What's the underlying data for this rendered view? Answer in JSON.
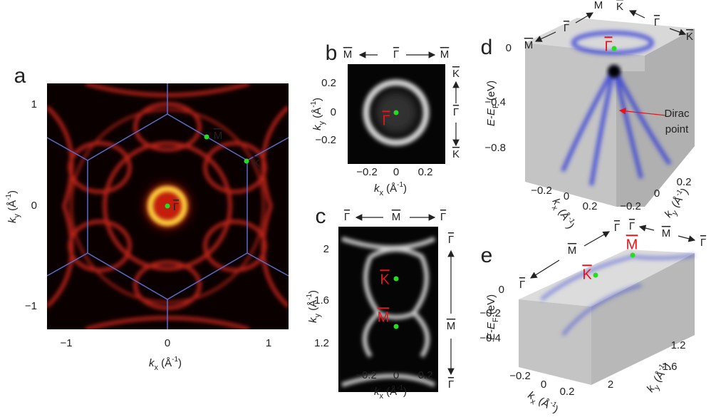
{
  "panels": [
    {
      "label": "a",
      "xlabel": [
        "k",
        "x",
        " (Å",
        "-1",
        ")"
      ],
      "ylabel": [
        "k",
        "y",
        " (Å",
        "-1",
        ")"
      ],
      "xticks": [
        "−1",
        "0",
        "1"
      ],
      "yticks": [
        "1",
        "0",
        "−1"
      ],
      "points": [
        "Γ",
        "M",
        "K"
      ]
    },
    {
      "label": "b",
      "xlabel": [
        "k",
        "x",
        " (Å",
        "-1",
        ")"
      ],
      "ylabel": [
        "k",
        "y",
        " (Å",
        "-1",
        ")"
      ],
      "xticks": [
        "−0.2",
        "0",
        "0.2"
      ],
      "yticks": [
        "0.2",
        "0",
        "−0.2"
      ],
      "points": [
        "Γ"
      ],
      "top": [
        "M",
        "Γ",
        "M"
      ],
      "side": [
        "K",
        "Γ",
        "K"
      ]
    },
    {
      "label": "c",
      "xlabel": [
        "k",
        "x",
        " (Å",
        "-1",
        ")"
      ],
      "ylabel": [
        "k",
        "y",
        " (Å",
        "-1",
        ")"
      ],
      "xticks": [
        "−0.2",
        "0",
        "0.2"
      ],
      "yticks": [
        "2",
        "1.6",
        "1.2"
      ],
      "points": [
        "K",
        "M"
      ],
      "top": [
        "Γ",
        "M",
        "Γ"
      ],
      "side": [
        "Γ",
        "M",
        "Γ"
      ]
    },
    {
      "label": "d",
      "xlabel": [
        "k",
        "x",
        " (Å",
        "-1",
        ")"
      ],
      "ylabel": [
        "k",
        "y",
        " (Å",
        "-1",
        ")"
      ],
      "zlabel": [
        "E-E",
        "F",
        " (eV)"
      ],
      "xticks": [
        "−0.2",
        "0",
        "0.2"
      ],
      "yticks": [
        "−0.2",
        "0",
        "0.2"
      ],
      "zticks": [
        "0",
        "−0.4",
        "−0.8"
      ],
      "points": [
        "Γ"
      ],
      "top": [
        "M",
        "Γ",
        "M",
        "K",
        "Γ",
        "K"
      ],
      "annotation": [
        "Dirac",
        "point"
      ]
    },
    {
      "label": "e",
      "xlabel": [
        "k",
        "x",
        " (Å",
        "-1",
        ")"
      ],
      "ylabel": [
        "k",
        "y",
        " (Å",
        "-1",
        ")"
      ],
      "zlabel": [
        "E-E",
        "F",
        " (eV)"
      ],
      "xticks": [
        "−0.2",
        "0",
        "0.2"
      ],
      "yticks": [
        "1.2",
        "1.6",
        "2"
      ],
      "zticks": [
        "0",
        "−0.2",
        "−0.4"
      ],
      "points": [
        "K",
        "M"
      ],
      "top": [
        "Γ",
        "M",
        "Γ",
        "Γ",
        "M",
        "Γ"
      ]
    }
  ]
}
